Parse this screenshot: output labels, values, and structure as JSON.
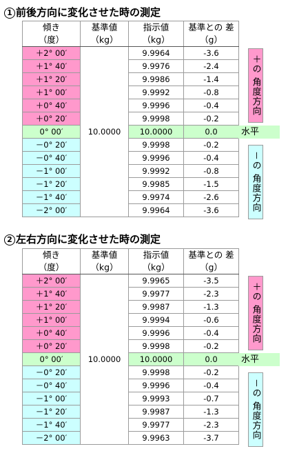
{
  "headers": {
    "tilt": "傾き",
    "tilt_unit": "（度）",
    "base": "基準値",
    "base_unit": "（kg）",
    "indicated": "指示値",
    "indicated_unit": "（kg）",
    "diff": "基準との 差",
    "diff_unit": "（g）"
  },
  "side_labels": {
    "plus": "＋の 角度方向",
    "minus": "－の 角度方向",
    "level": "水平"
  },
  "sections": [
    {
      "number": "1",
      "title": "前後方向に変化させた時の測定",
      "base_value": "10.0000",
      "rows": [
        {
          "angle": "＋2°  00′",
          "indicated": "9.9964",
          "diff": "-3.6",
          "color": "pink"
        },
        {
          "angle": "＋1°  40′",
          "indicated": "9.9976",
          "diff": "-2.4",
          "color": "pink"
        },
        {
          "angle": "＋1°  20′",
          "indicated": "9.9986",
          "diff": "-1.4",
          "color": "pink"
        },
        {
          "angle": "＋1°  00′",
          "indicated": "9.9992",
          "diff": "-0.8",
          "color": "pink"
        },
        {
          "angle": "＋0°  40′",
          "indicated": "9.9996",
          "diff": "-0.4",
          "color": "pink"
        },
        {
          "angle": "＋0°  20′",
          "indicated": "9.9998",
          "diff": "-0.2",
          "color": "pink"
        },
        {
          "angle": "0°  00′",
          "indicated": "10.0000",
          "diff": "0.0",
          "color": "green"
        },
        {
          "angle": "－0°  20′",
          "indicated": "9.9998",
          "diff": "-0.2",
          "color": "cyan"
        },
        {
          "angle": "－0°  40′",
          "indicated": "9.9996",
          "diff": "-0.4",
          "color": "cyan"
        },
        {
          "angle": "－1°  00′",
          "indicated": "9.9992",
          "diff": "-0.8",
          "color": "cyan"
        },
        {
          "angle": "－1°  20′",
          "indicated": "9.9985",
          "diff": "-1.5",
          "color": "cyan"
        },
        {
          "angle": "－1°  40′",
          "indicated": "9.9974",
          "diff": "-2.6",
          "color": "cyan"
        },
        {
          "angle": "－2°  00′",
          "indicated": "9.9964",
          "diff": "-3.6",
          "color": "cyan"
        }
      ]
    },
    {
      "number": "2",
      "title": "左右方向に変化させた時の測定",
      "base_value": "10.0000",
      "rows": [
        {
          "angle": "＋2°  00′",
          "indicated": "9.9965",
          "diff": "-3.5",
          "color": "pink"
        },
        {
          "angle": "＋1°  40′",
          "indicated": "9.9977",
          "diff": "-2.3",
          "color": "pink"
        },
        {
          "angle": "＋1°  20′",
          "indicated": "9.9987",
          "diff": "-1.3",
          "color": "pink"
        },
        {
          "angle": "＋1°  00′",
          "indicated": "9.9994",
          "diff": "-0.6",
          "color": "pink"
        },
        {
          "angle": "＋0°  40′",
          "indicated": "9.9996",
          "diff": "-0.4",
          "color": "pink"
        },
        {
          "angle": "＋0°  20′",
          "indicated": "9.9998",
          "diff": "-0.2",
          "color": "pink"
        },
        {
          "angle": "0°  00′",
          "indicated": "10.0000",
          "diff": "0.0",
          "color": "green"
        },
        {
          "angle": "－0°  20′",
          "indicated": "9.9998",
          "diff": "-0.2",
          "color": "cyan"
        },
        {
          "angle": "－0°  40′",
          "indicated": "9.9996",
          "diff": "-0.4",
          "color": "cyan"
        },
        {
          "angle": "－1°  00′",
          "indicated": "9.9993",
          "diff": "-0.7",
          "color": "cyan"
        },
        {
          "angle": "－1°  20′",
          "indicated": "9.9987",
          "diff": "-1.3",
          "color": "cyan"
        },
        {
          "angle": "－1°  40′",
          "indicated": "9.9977",
          "diff": "-2.3",
          "color": "cyan"
        },
        {
          "angle": "－2°  00′",
          "indicated": "9.9963",
          "diff": "-3.7",
          "color": "cyan"
        }
      ]
    }
  ],
  "colors": {
    "pink": "#ff99cc",
    "cyan": "#ccffff",
    "green": "#ccffcc"
  }
}
